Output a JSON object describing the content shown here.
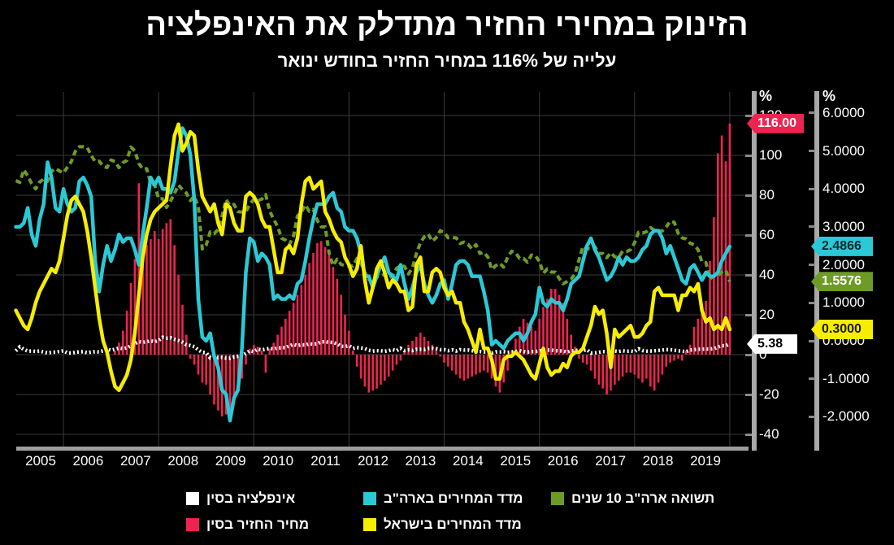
{
  "title": "הזינוק במחירי החזיר מתדלק את האינפלציה",
  "subtitle": "עלייה של 116% במחיר החזיר בחודש ינואר",
  "colors": {
    "background": "#000000",
    "grid": "#3a3a3a",
    "axis_bar": "#a8a8a8",
    "x_axis_bar": "#9d9d9d",
    "text": "#ffffff",
    "red": "#ee2450",
    "cyan": "#2bc9d6",
    "yellow": "#f7ed00",
    "green": "#6e9b27",
    "white": "#ffffff"
  },
  "y_axis_left_pct": {
    "unit": "%",
    "ticks": [
      120,
      100,
      80,
      60,
      40,
      20,
      0,
      -20,
      -40
    ]
  },
  "y_axis_right_pct": {
    "unit": "%",
    "ticks": [
      "6.0000",
      "5.0000",
      "4.0000",
      "3.0000",
      "2.0000",
      "1.0000",
      "0.0000",
      "-1.0000",
      "-2.0000"
    ]
  },
  "x_axis": {
    "years": [
      2005,
      2006,
      2007,
      2008,
      2009,
      2010,
      2011,
      2012,
      2013,
      2014,
      2015,
      2016,
      2017,
      2018,
      2019
    ]
  },
  "tags": {
    "pork": "116.00",
    "china_cpi": "5.38",
    "us_cpi": "2.4866",
    "us_10y": "1.5576",
    "israel_cpi": "0.3000"
  },
  "legend": {
    "items": [
      {
        "label": "אינפלציה בסין",
        "color": "#ffffff",
        "key": "china_cpi"
      },
      {
        "label": "מדד המחירים בארה\"ב",
        "color": "#2bc9d6",
        "key": "us_cpi"
      },
      {
        "label": "תשואה ארה\"ב 10 שנים",
        "color": "#6e9b27",
        "key": "us_10y"
      },
      {
        "label": "מחיר החזיר בסין",
        "color": "#ee2450",
        "key": "pork"
      },
      {
        "label": "מדד המחירים בישראל",
        "color": "#f7ed00",
        "key": "israel_cpi"
      }
    ]
  },
  "chart_data": {
    "type": "mixed",
    "frequency": "monthly",
    "x_start": "2005-01",
    "x_end": "2020-01",
    "gridline_years": [
      2006,
      2008,
      2010,
      2012,
      2014,
      2016,
      2018,
      2020
    ],
    "axes": {
      "left": {
        "unit": "%",
        "range": [
          -40,
          120
        ],
        "ticks": [
          120,
          100,
          80,
          60,
          40,
          20,
          0,
          -20,
          -40
        ]
      },
      "right": {
        "unit": "%",
        "range": [
          -2,
          6
        ],
        "ticks": [
          6,
          5,
          4,
          3,
          2,
          1,
          0,
          -1,
          -2
        ]
      }
    },
    "series": [
      {
        "key": "pork",
        "name": "מחיר החזיר בסין",
        "type": "bar",
        "axis": "left",
        "color": "#ee2450",
        "tag_text": "#ffffff",
        "last_value": 116.0,
        "values": [
          null,
          null,
          null,
          null,
          null,
          null,
          null,
          null,
          null,
          null,
          null,
          null,
          null,
          null,
          null,
          null,
          null,
          null,
          null,
          null,
          null,
          null,
          null,
          null,
          null,
          2,
          6,
          12,
          22,
          36,
          48,
          86,
          62,
          55,
          58,
          62,
          58,
          63,
          66,
          68,
          55,
          40,
          25,
          10,
          -2,
          -5,
          -10,
          -14,
          -15,
          -20,
          -25,
          -28,
          -31,
          -30,
          -27,
          -23,
          -18,
          -12,
          -5,
          3,
          5,
          4,
          2,
          -9,
          3,
          6,
          10,
          14,
          18,
          22,
          26,
          30,
          35,
          40,
          46,
          51,
          56,
          57,
          54,
          50,
          44,
          38,
          30,
          20,
          12,
          2,
          -6,
          -12,
          -16,
          -19,
          -18,
          -17,
          -15,
          -13,
          -11,
          -8,
          -5,
          -3,
          2,
          5,
          7,
          9,
          11,
          9,
          7,
          5,
          3,
          -1,
          -4,
          -6,
          -8,
          -10,
          -12,
          -13,
          -12,
          -11,
          -10,
          -9,
          -8,
          -9,
          -12,
          -16,
          -19,
          -14,
          -8,
          2,
          8,
          14,
          18,
          16,
          14,
          12,
          18,
          24,
          28,
          33,
          33,
          30,
          26,
          18,
          10,
          4,
          -2,
          -4,
          -5,
          -8,
          -12,
          -15,
          -17,
          -20,
          -18,
          -15,
          -13,
          -11,
          -9,
          -9,
          -10,
          -12,
          -14,
          -12,
          -16,
          -18,
          -14,
          -10,
          -6,
          -4,
          -3,
          -2,
          -3,
          2,
          5,
          14,
          18,
          21,
          27,
          47,
          69,
          101,
          110,
          97,
          116
        ]
      },
      {
        "key": "china_cpi",
        "name": "אינפלציה בסין",
        "type": "dotted-line",
        "axis": "left",
        "color": "#ffffff",
        "tag_text": "#000000",
        "last_value": 5.38,
        "values": [
          1.9,
          3.9,
          2.7,
          1.8,
          1.8,
          1.6,
          1.8,
          1.3,
          0.9,
          1.2,
          1.3,
          1.6,
          1.9,
          0.9,
          0.8,
          1.2,
          1.4,
          1.5,
          1.0,
          1.3,
          1.5,
          1.4,
          1.9,
          2.8,
          2.2,
          2.7,
          3.3,
          3.0,
          3.4,
          4.4,
          5.6,
          6.5,
          6.2,
          6.5,
          6.9,
          6.5,
          7.1,
          8.7,
          8.3,
          8.5,
          7.7,
          7.1,
          6.3,
          4.9,
          4.6,
          4.0,
          2.4,
          1.2,
          1.0,
          -1.6,
          -1.2,
          -1.5,
          -1.4,
          -1.7,
          -1.8,
          -1.2,
          -0.8,
          -0.5,
          0.6,
          1.9,
          1.5,
          2.7,
          2.4,
          2.8,
          3.1,
          2.9,
          3.3,
          3.5,
          3.6,
          4.4,
          5.1,
          4.6,
          4.9,
          4.9,
          5.4,
          5.3,
          5.5,
          6.4,
          6.5,
          6.2,
          6.1,
          5.5,
          4.2,
          4.1,
          4.5,
          3.2,
          3.6,
          3.4,
          3.0,
          2.2,
          1.8,
          2.0,
          1.9,
          1.7,
          2.0,
          2.5,
          2.0,
          3.2,
          2.1,
          2.4,
          2.1,
          2.7,
          2.7,
          2.6,
          3.1,
          3.2,
          3.0,
          2.5,
          2.5,
          2.0,
          2.4,
          1.8,
          2.5,
          2.3,
          2.3,
          2.0,
          1.6,
          1.6,
          1.4,
          1.5,
          0.8,
          1.4,
          1.4,
          1.5,
          1.2,
          1.4,
          1.6,
          2.0,
          1.6,
          1.3,
          1.5,
          1.6,
          1.8,
          2.3,
          2.3,
          2.3,
          2.0,
          1.9,
          1.8,
          1.3,
          1.9,
          2.1,
          2.3,
          2.1,
          2.5,
          0.8,
          0.9,
          1.2,
          1.5,
          1.5,
          1.4,
          1.8,
          1.6,
          1.9,
          1.7,
          1.8,
          1.5,
          2.9,
          2.1,
          1.8,
          1.8,
          1.9,
          2.1,
          2.3,
          2.5,
          2.5,
          2.2,
          1.9,
          1.7,
          1.5,
          2.3,
          2.5,
          2.7,
          2.7,
          2.8,
          2.8,
          3.0,
          3.8,
          4.5,
          4.5,
          5.38
        ]
      },
      {
        "key": "us_10y",
        "name": "תשואה ארה\"ב 10 שנים",
        "type": "dashed-line",
        "axis": "right",
        "color": "#6e9b27",
        "tag_text": "#ffffff",
        "last_value": 1.5576,
        "values": [
          4.22,
          4.17,
          4.5,
          4.34,
          4.14,
          4.0,
          4.18,
          4.26,
          4.2,
          4.46,
          4.54,
          4.47,
          4.42,
          4.57,
          4.72,
          4.99,
          5.11,
          5.11,
          5.09,
          4.88,
          4.72,
          4.73,
          4.6,
          4.56,
          4.76,
          4.72,
          4.56,
          4.69,
          4.75,
          5.1,
          5.0,
          4.67,
          4.52,
          4.53,
          4.15,
          4.1,
          3.74,
          3.74,
          3.51,
          3.68,
          3.88,
          4.1,
          3.98,
          3.89,
          3.69,
          3.81,
          3.53,
          2.42,
          2.52,
          2.87,
          2.82,
          2.93,
          3.29,
          3.72,
          3.56,
          3.59,
          3.4,
          3.39,
          3.4,
          3.59,
          3.73,
          3.69,
          3.73,
          3.85,
          3.42,
          3.2,
          3.01,
          2.7,
          2.65,
          2.54,
          2.76,
          3.29,
          3.39,
          3.58,
          3.41,
          3.46,
          3.17,
          3.0,
          3.0,
          2.3,
          1.98,
          2.15,
          2.01,
          1.98,
          1.97,
          1.97,
          2.17,
          2.05,
          1.8,
          1.62,
          1.53,
          1.68,
          1.72,
          1.75,
          1.65,
          1.72,
          1.91,
          1.98,
          1.96,
          1.76,
          1.93,
          2.3,
          2.58,
          2.74,
          2.81,
          2.62,
          2.72,
          2.9,
          2.86,
          2.71,
          2.72,
          2.71,
          2.56,
          2.6,
          2.54,
          2.42,
          2.53,
          2.3,
          2.33,
          2.21,
          1.88,
          1.98,
          2.04,
          1.94,
          2.2,
          2.36,
          2.32,
          2.17,
          2.17,
          2.07,
          2.26,
          2.24,
          2.09,
          1.78,
          1.89,
          1.81,
          1.81,
          1.64,
          1.5,
          1.56,
          1.63,
          1.76,
          2.14,
          2.49,
          2.43,
          2.42,
          2.48,
          2.3,
          2.3,
          2.19,
          2.32,
          2.21,
          2.2,
          2.36,
          2.35,
          2.4,
          2.58,
          2.86,
          2.84,
          2.87,
          2.98,
          2.91,
          2.89,
          2.89,
          3.0,
          3.15,
          3.12,
          2.83,
          2.71,
          2.68,
          2.57,
          2.53,
          2.4,
          2.07,
          2.06,
          1.63,
          1.7,
          1.71,
          1.81,
          1.86,
          1.5576
        ]
      },
      {
        "key": "us_cpi",
        "name": "מדד המחירים בארה\"ב",
        "type": "line",
        "axis": "right",
        "color": "#2bc9d6",
        "tag_text": "#00282c",
        "last_value": 2.4866,
        "values": [
          3.0,
          3.0,
          3.1,
          3.5,
          2.8,
          2.5,
          3.2,
          3.6,
          4.7,
          4.3,
          3.5,
          3.4,
          4.0,
          3.6,
          3.4,
          3.5,
          4.2,
          4.3,
          4.1,
          3.8,
          2.1,
          1.3,
          2.0,
          2.5,
          2.1,
          2.4,
          2.8,
          2.6,
          2.7,
          2.7,
          2.4,
          2.0,
          2.8,
          3.5,
          4.3,
          4.1,
          4.3,
          4.0,
          4.0,
          3.9,
          4.2,
          5.0,
          5.6,
          5.4,
          4.9,
          3.7,
          1.1,
          0.1,
          0.0,
          0.2,
          -0.4,
          -0.7,
          -1.3,
          -1.4,
          -2.1,
          -1.5,
          -1.3,
          -0.2,
          1.8,
          2.7,
          2.6,
          2.1,
          2.3,
          2.2,
          2.0,
          1.1,
          1.2,
          1.1,
          1.1,
          1.2,
          1.1,
          1.5,
          1.6,
          2.1,
          2.7,
          3.2,
          3.6,
          3.6,
          3.6,
          3.8,
          3.9,
          3.5,
          3.4,
          3.0,
          2.9,
          2.9,
          2.7,
          2.3,
          1.7,
          1.7,
          1.4,
          1.7,
          2.0,
          2.2,
          1.8,
          1.7,
          1.6,
          2.0,
          1.5,
          1.1,
          1.4,
          1.8,
          2.0,
          1.5,
          1.2,
          1.0,
          1.2,
          1.5,
          1.6,
          1.1,
          1.5,
          2.0,
          2.1,
          2.1,
          2.0,
          1.7,
          1.7,
          1.7,
          1.3,
          0.8,
          -0.1,
          0.0,
          -0.1,
          -0.2,
          0.0,
          0.1,
          0.2,
          0.2,
          0.0,
          0.2,
          0.5,
          0.7,
          1.4,
          1.0,
          0.9,
          1.1,
          1.0,
          1.0,
          0.8,
          1.1,
          1.5,
          1.6,
          1.7,
          2.1,
          2.5,
          2.7,
          2.4,
          2.2,
          1.9,
          1.6,
          1.7,
          1.9,
          2.2,
          2.0,
          2.2,
          2.1,
          2.1,
          2.2,
          2.4,
          2.5,
          2.8,
          2.9,
          2.9,
          2.7,
          2.3,
          2.5,
          2.2,
          1.9,
          1.6,
          1.5,
          1.9,
          2.0,
          1.8,
          1.6,
          1.8,
          1.7,
          1.7,
          1.8,
          2.1,
          2.3,
          2.4866
        ]
      },
      {
        "key": "israel_cpi",
        "name": "מדד המחירים בישראל",
        "type": "line",
        "axis": "right",
        "color": "#f7ed00",
        "tag_text": "#1a1a00",
        "last_value": 0.3,
        "values": [
          0.8,
          0.6,
          0.4,
          0.3,
          0.6,
          1.0,
          1.3,
          1.5,
          1.7,
          1.9,
          1.8,
          2.1,
          2.7,
          3.3,
          3.7,
          3.8,
          3.6,
          3.4,
          2.9,
          2.2,
          1.4,
          0.6,
          0.0,
          -0.3,
          -0.8,
          -1.2,
          -1.3,
          -1.1,
          -0.9,
          -0.5,
          0.2,
          1.2,
          2.2,
          2.8,
          3.2,
          3.4,
          3.5,
          3.6,
          3.7,
          4.6,
          5.4,
          5.7,
          5.0,
          5.2,
          5.5,
          5.4,
          4.5,
          3.8,
          3.6,
          3.4,
          3.6,
          3.1,
          2.8,
          3.6,
          3.5,
          3.1,
          2.9,
          2.9,
          3.8,
          3.9,
          3.8,
          3.6,
          3.2,
          3.0,
          3.0,
          2.4,
          1.8,
          1.8,
          2.4,
          2.5,
          2.3,
          2.7,
          3.6,
          4.2,
          4.3,
          4.0,
          4.1,
          4.2,
          3.4,
          3.2,
          2.9,
          2.7,
          2.6,
          2.2,
          2.0,
          1.7,
          1.9,
          2.5,
          1.6,
          1.0,
          1.4,
          1.9,
          2.1,
          1.8,
          1.4,
          1.6,
          1.5,
          1.3,
          1.3,
          0.8,
          0.9,
          2.0,
          2.2,
          1.3,
          1.3,
          1.8,
          1.9,
          1.8,
          1.4,
          1.2,
          1.3,
          1.0,
          1.0,
          0.5,
          0.3,
          0.0,
          -0.3,
          0.3,
          -0.2,
          -0.2,
          -0.5,
          -1.0,
          -1.0,
          -0.5,
          -0.4,
          -0.4,
          -0.3,
          -0.4,
          -0.5,
          -0.7,
          -0.9,
          -1.0,
          -0.6,
          -0.2,
          -0.7,
          -0.9,
          -0.8,
          -0.8,
          -0.6,
          -0.7,
          -0.4,
          -0.3,
          -0.3,
          -0.2,
          0.1,
          0.4,
          0.9,
          0.7,
          0.8,
          0.2,
          -0.7,
          0.3,
          0.1,
          0.2,
          0.3,
          0.4,
          0.1,
          0.1,
          0.2,
          0.4,
          0.5,
          1.3,
          1.4,
          1.2,
          1.2,
          1.2,
          1.2,
          0.8,
          1.2,
          1.2,
          1.4,
          1.3,
          1.5,
          0.8,
          0.5,
          0.6,
          0.3,
          0.4,
          0.3,
          0.6,
          0.3
        ]
      }
    ]
  }
}
